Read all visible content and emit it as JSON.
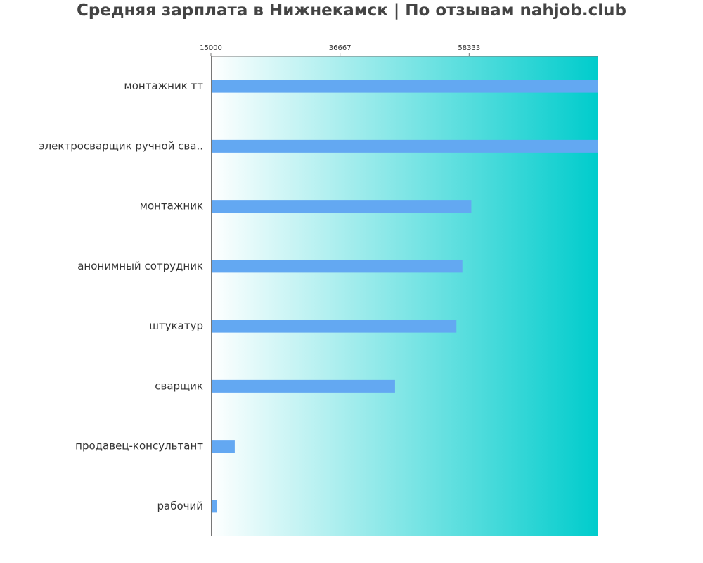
{
  "chart_data": {
    "type": "bar",
    "orientation": "horizontal",
    "title": "Средняя зарплата в Нижнекамск | По отзывам nahjob.club",
    "xlabel": "",
    "ylabel": "",
    "x_ticks": [
      15000,
      36667,
      58333
    ],
    "xlim": [
      15000,
      80000
    ],
    "categories": [
      "монтажник тт",
      "электросварщик ручной сва..",
      "монтажник",
      "анонимный сотрудник",
      "штукатур",
      "сварщик",
      "продавец-консультант",
      "рабочий"
    ],
    "values": [
      80000,
      80000,
      58700,
      57200,
      56200,
      45900,
      19000,
      16000
    ],
    "bar_color": "#63a8f2",
    "background_gradient": [
      "#ffffff",
      "#00cccc"
    ],
    "grid": false,
    "legend": "none"
  }
}
